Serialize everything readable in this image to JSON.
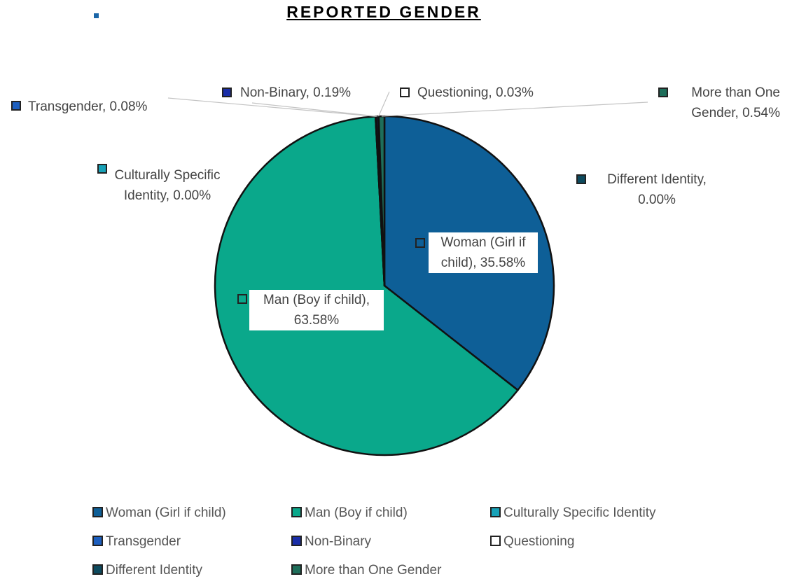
{
  "chart_data": {
    "type": "pie",
    "title": "REPORTED GENDER",
    "categories": [
      "Woman (Girl if child)",
      "Man (Boy if child)",
      "Culturally Specific Identity",
      "Transgender",
      "Non-Binary",
      "Questioning",
      "Different Identity",
      "More than One Gender"
    ],
    "values": [
      35.58,
      63.58,
      0.0,
      0.08,
      0.19,
      0.03,
      0.0,
      0.54
    ],
    "value_labels": [
      "Woman (Girl if child), 35.58%",
      "Man (Boy if child), 63.58%",
      "Culturally Specific Identity, 0.00%",
      "Transgender, 0.08%",
      "Non-Binary, 0.19%",
      "Questioning, 0.03%",
      "Different Identity, 0.00%",
      "More than One Gender, 0.54%"
    ],
    "colors": [
      "#0e5f97",
      "#0aa88b",
      "#17a2b8",
      "#1d5fbf",
      "#1a2ea8",
      "#ffffff",
      "#0d4a5e",
      "#1e6e5a"
    ],
    "legend": "bottom"
  }
}
